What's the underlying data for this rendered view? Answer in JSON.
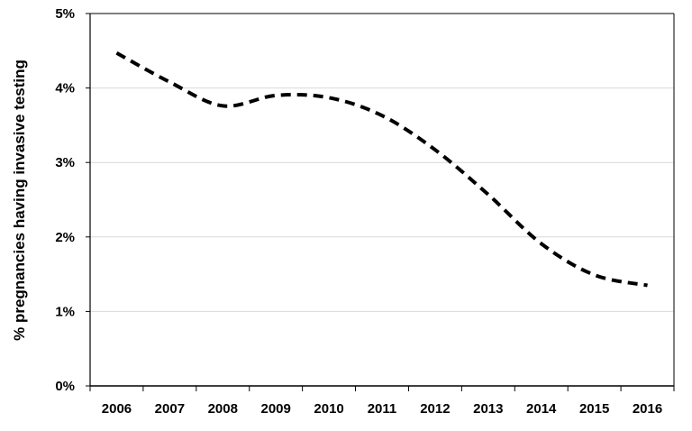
{
  "chart_data": {
    "type": "line",
    "title": "",
    "xlabel": "",
    "ylabel": "% pregnancies having invasive testing",
    "x": [
      "2006",
      "2007",
      "2008",
      "2009",
      "2010",
      "2011",
      "2012",
      "2013",
      "2014",
      "2015",
      "2016"
    ],
    "series": [
      {
        "values": [
          4.47,
          4.08,
          3.76,
          3.9,
          3.87,
          3.63,
          3.17,
          2.57,
          1.91,
          1.49,
          1.35
        ],
        "color": "#000000",
        "line_style": "dashed"
      }
    ],
    "ylim": [
      0,
      5
    ],
    "yticks": [
      0,
      1,
      2,
      3,
      4,
      5
    ],
    "ytick_labels": [
      "0%",
      "1%",
      "2%",
      "3%",
      "4%",
      "5%"
    ],
    "grid": "horizontal",
    "grid_color": "#d9d9d9",
    "legend": "none"
  }
}
